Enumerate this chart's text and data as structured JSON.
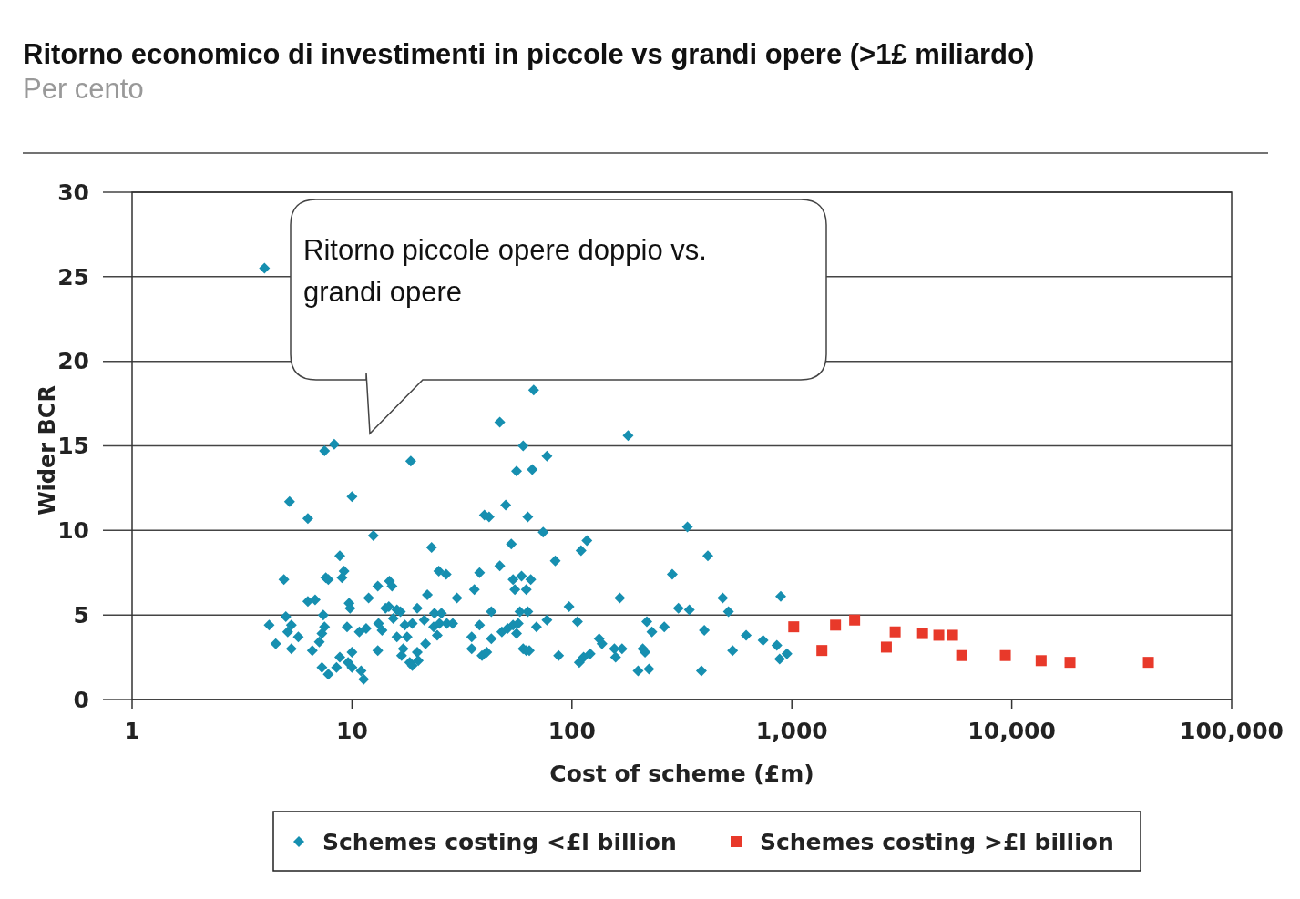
{
  "chart_data": {
    "type": "scatter",
    "title": "Ritorno economico di investimenti in piccole vs grandi opere (>1£ miliardo)",
    "subtitle": "Per cento",
    "xlabel": "Cost of scheme (£m)",
    "ylabel": "Wider BCR",
    "log": "x",
    "grid": "y",
    "legend": "bottom",
    "xlim": [
      1,
      100000
    ],
    "xticks": [
      1,
      10,
      100,
      {
        "value": 1000,
        "label": "1,000"
      },
      {
        "value": 10000,
        "label": "10,000"
      },
      {
        "value": 100000,
        "label": "100,000"
      }
    ],
    "ylim": [
      0,
      30
    ],
    "yticks": [
      0,
      5,
      10,
      15,
      20,
      25,
      30
    ],
    "annotations": [
      "Ritorno piccole opere doppio vs. grandi opere"
    ],
    "series": [
      {
        "name": "Schemes costing <£l billion",
        "color": "#168fb0",
        "marker": "diamond",
        "x": [
          4,
          8.3,
          7.5,
          47,
          67,
          180,
          18.5,
          10,
          5.2,
          6.3,
          60,
          77,
          56,
          66,
          50,
          40,
          42,
          63,
          74,
          335,
          415,
          12.5,
          23,
          53,
          47,
          84,
          117,
          110,
          8.8,
          9.2,
          9,
          7.6,
          7.8,
          4.9,
          14.8,
          13.1,
          15.2,
          24.8,
          26.8,
          38,
          54,
          55,
          59,
          65,
          62,
          286,
          6.8,
          6.3,
          9.7,
          9.8,
          11.9,
          22,
          30,
          36,
          19.8,
          16.6,
          14.2,
          14.7,
          16,
          43,
          58,
          63,
          97,
          165,
          305,
          342,
          485,
          515,
          890,
          5,
          4.2,
          5.3,
          5.1,
          4.5,
          5.3,
          5.7,
          7.4,
          7.5,
          7.3,
          7.1,
          6.6,
          9.5,
          10.8,
          11.6,
          13.2,
          13.7,
          15.4,
          17.4,
          16,
          17.8,
          18.8,
          21.3,
          23.7,
          25.5,
          23.5,
          25,
          27,
          28.7,
          24.4,
          21.6,
          17.1,
          19.8,
          16.8,
          18.3,
          18.8,
          20,
          13.1,
          10,
          8.8,
          9.6,
          10,
          11,
          11.3,
          7.3,
          7.8,
          8.5,
          35,
          38,
          43,
          48,
          51,
          54,
          57,
          56,
          69,
          77,
          106,
          35,
          39,
          41,
          60,
          62,
          64,
          87,
          108,
          113,
          121,
          133,
          137,
          156,
          169,
          158,
          200,
          224,
          210,
          215,
          219,
          231,
          263,
          400,
          388,
          538,
          620,
          740,
          855,
          880,
          950
        ],
        "values": [
          25.5,
          15.1,
          14.7,
          16.4,
          18.3,
          15.6,
          14.1,
          12,
          11.7,
          10.7,
          15,
          14.4,
          13.5,
          13.6,
          11.5,
          10.9,
          10.8,
          10.8,
          9.9,
          10.2,
          8.5,
          9.7,
          9,
          9.2,
          7.9,
          8.2,
          9.4,
          8.8,
          8.5,
          7.6,
          7.2,
          7.2,
          7.1,
          7.1,
          7,
          6.7,
          6.7,
          7.6,
          7.4,
          7.5,
          7.1,
          6.5,
          7.3,
          7.1,
          6.5,
          7.4,
          5.9,
          5.8,
          5.7,
          5.4,
          6,
          6.2,
          6,
          6.5,
          5.4,
          5.2,
          5.4,
          5.5,
          5.3,
          5.2,
          5.2,
          5.2,
          5.5,
          6,
          5.4,
          5.3,
          6,
          5.2,
          6.1,
          4.9,
          4.4,
          4.4,
          4,
          3.3,
          3,
          3.7,
          5,
          4.3,
          3.9,
          3.4,
          2.9,
          4.3,
          4,
          4.2,
          4.5,
          4.1,
          4.8,
          4.4,
          3.7,
          3.7,
          4.5,
          4.7,
          5.1,
          5.1,
          4.3,
          4.5,
          4.5,
          4.5,
          3.8,
          3.3,
          3,
          2.8,
          2.6,
          2.2,
          2,
          2.3,
          2.9,
          2.8,
          2.5,
          2.2,
          1.9,
          1.7,
          1.2,
          1.9,
          1.5,
          1.9,
          3.7,
          4.4,
          3.6,
          4,
          4.2,
          4.4,
          4.5,
          3.9,
          4.3,
          4.7,
          4.6,
          3,
          2.6,
          2.8,
          3,
          2.9,
          2.9,
          2.6,
          2.2,
          2.5,
          2.7,
          3.6,
          3.3,
          3,
          3,
          2.5,
          1.7,
          1.8,
          3,
          2.8,
          4.6,
          4,
          4.3,
          4.1,
          1.7,
          2.9,
          3.8,
          3.5,
          3.2,
          2.4,
          2.7
        ]
      },
      {
        "name": "Schemes costing >£l billion",
        "color": "#e8392a",
        "marker": "square",
        "x": [
          1020,
          1370,
          1580,
          1930,
          2690,
          2950,
          3930,
          4660,
          5380,
          5920,
          9350,
          13600,
          18400,
          41800
        ],
        "values": [
          4.3,
          2.9,
          4.4,
          4.7,
          3.1,
          4,
          3.9,
          3.8,
          3.8,
          2.6,
          2.6,
          2.3,
          2.2,
          2.2
        ]
      }
    ]
  }
}
